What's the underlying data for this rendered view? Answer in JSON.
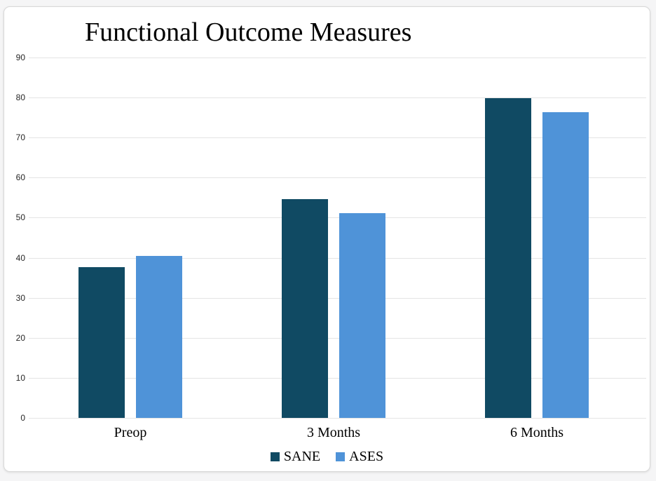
{
  "page": {
    "background_color": "#f5f5f6",
    "card_background_color": "#ffffff",
    "card_border_color": "#d8d8d8"
  },
  "chart_data": {
    "type": "bar",
    "title": "Functional Outcome Measures",
    "categories": [
      "Preop",
      "3 Months",
      "6 Months"
    ],
    "series": [
      {
        "name": "SANE",
        "color": "#104a63",
        "values": [
          37.6,
          54.6,
          79.9
        ]
      },
      {
        "name": "ASES",
        "color": "#4f93d8",
        "values": [
          40.5,
          51.1,
          76.4
        ]
      }
    ],
    "ylim": [
      0,
      90
    ],
    "yticks": [
      0,
      10,
      20,
      30,
      40,
      50,
      60,
      70,
      80,
      90
    ],
    "grid": true,
    "gridline_color": "#e4e4e4",
    "legend_position": "bottom",
    "xlabel": "",
    "ylabel": ""
  }
}
